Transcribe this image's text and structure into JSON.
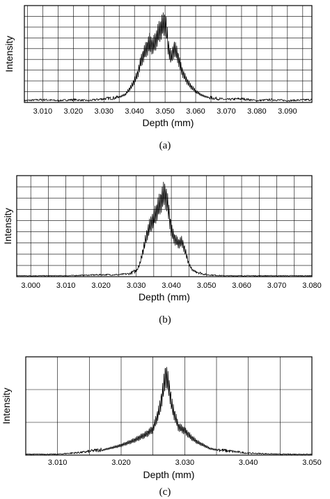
{
  "chart_data": [
    {
      "type": "line",
      "panel_label": "(a)",
      "xlabel": "Depth (mm)",
      "ylabel": "Intensity",
      "xlim": [
        3.004,
        3.098
      ],
      "ylim": [
        0,
        1
      ],
      "tick_labels": [
        "3.010",
        "3.020",
        "3.030",
        "3.040",
        "3.050",
        "3.060",
        "3.070",
        "3.080",
        "3.090"
      ],
      "tick_values": [
        3.01,
        3.02,
        3.03,
        3.04,
        3.05,
        3.06,
        3.07,
        3.08,
        3.09
      ],
      "grid": true,
      "grid_y_lines": 9,
      "grid_x_minor": 0.005,
      "series": [
        {
          "x": [
            3.004,
            3.01,
            3.015,
            3.02,
            3.025,
            3.03,
            3.034,
            3.037,
            3.039,
            3.041,
            3.042,
            3.043,
            3.044,
            3.045,
            3.046,
            3.047,
            3.048,
            3.049,
            3.05,
            3.0505,
            3.051,
            3.052,
            3.053,
            3.054,
            3.055,
            3.056,
            3.057,
            3.058,
            3.06,
            3.062,
            3.065,
            3.07,
            3.075,
            3.08,
            3.085,
            3.09,
            3.098
          ],
          "y": [
            0.02,
            0.03,
            0.02,
            0.03,
            0.02,
            0.04,
            0.05,
            0.1,
            0.2,
            0.35,
            0.5,
            0.6,
            0.68,
            0.75,
            0.7,
            0.78,
            0.88,
            0.95,
            1.0,
            0.9,
            0.7,
            0.55,
            0.68,
            0.6,
            0.45,
            0.35,
            0.28,
            0.22,
            0.14,
            0.09,
            0.05,
            0.03,
            0.04,
            0.02,
            0.03,
            0.02,
            0.03
          ]
        }
      ]
    },
    {
      "type": "line",
      "panel_label": "(b)",
      "xlabel": "Depth (mm)",
      "ylabel": "Intensity",
      "xlim": [
        2.996,
        3.08
      ],
      "ylim": [
        0,
        1
      ],
      "tick_labels": [
        "3.000",
        "3.010",
        "3.020",
        "3.030",
        "3.040",
        "3.050",
        "3.060",
        "3.070",
        "3.080"
      ],
      "tick_values": [
        3.0,
        3.01,
        3.02,
        3.03,
        3.04,
        3.05,
        3.06,
        3.07,
        3.08
      ],
      "grid": true,
      "grid_y_lines": 9,
      "grid_x_minor": 0.005,
      "series": [
        {
          "x": [
            2.996,
            3.0,
            3.01,
            3.02,
            3.025,
            3.028,
            3.03,
            3.031,
            3.032,
            3.033,
            3.034,
            3.035,
            3.036,
            3.037,
            3.038,
            3.0385,
            3.039,
            3.04,
            3.041,
            3.042,
            3.043,
            3.044,
            3.045,
            3.046,
            3.048,
            3.05,
            3.055,
            3.06,
            3.07,
            3.08
          ],
          "y": [
            0.01,
            0.01,
            0.01,
            0.02,
            0.02,
            0.03,
            0.06,
            0.15,
            0.32,
            0.5,
            0.62,
            0.7,
            0.8,
            0.9,
            1.0,
            0.95,
            0.85,
            0.55,
            0.45,
            0.4,
            0.42,
            0.3,
            0.15,
            0.08,
            0.04,
            0.02,
            0.01,
            0.01,
            0.01,
            0.01
          ]
        }
      ]
    },
    {
      "type": "line",
      "panel_label": "(c)",
      "xlabel": "Depth (mm)",
      "ylabel": "Intensity",
      "xlim": [
        3.005,
        3.05
      ],
      "ylim": [
        0,
        1
      ],
      "tick_labels": [
        "3.010",
        "3.020",
        "3.030",
        "3.040",
        "3.050"
      ],
      "tick_values": [
        3.01,
        3.02,
        3.03,
        3.04,
        3.05
      ],
      "grid": true,
      "grid_y_lines": 3,
      "grid_x_minor": 0.005,
      "series": [
        {
          "x": [
            3.005,
            3.01,
            3.014,
            3.017,
            3.02,
            3.022,
            3.024,
            3.025,
            3.026,
            3.0265,
            3.027,
            3.0275,
            3.028,
            3.029,
            3.03,
            3.031,
            3.032,
            3.034,
            3.036,
            3.04,
            3.045,
            3.05
          ],
          "y": [
            0.01,
            0.01,
            0.03,
            0.06,
            0.12,
            0.18,
            0.26,
            0.32,
            0.55,
            0.75,
            1.0,
            0.85,
            0.6,
            0.35,
            0.3,
            0.22,
            0.16,
            0.08,
            0.05,
            0.02,
            0.01,
            0.01
          ]
        }
      ]
    }
  ]
}
